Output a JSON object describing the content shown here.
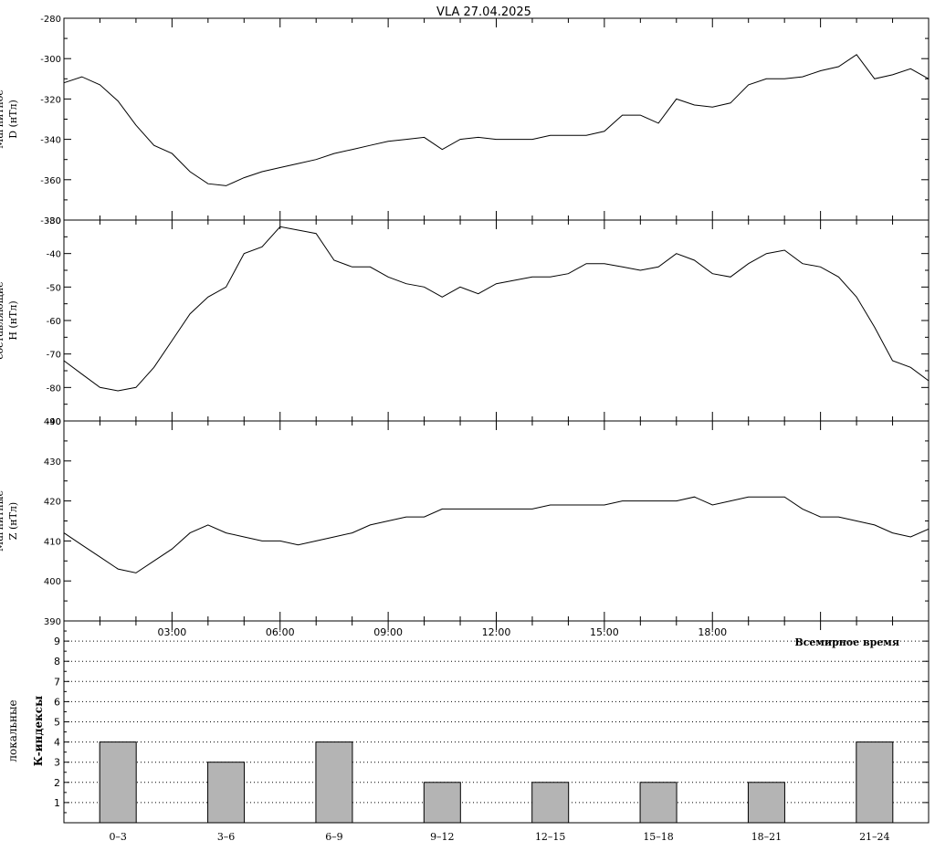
{
  "title": "VLA   27.04.2025",
  "chart_data": [
    {
      "type": "line",
      "ylabel": "D (нТл)",
      "ylabel_cut": "Магнитное",
      "ylim": [
        -380,
        -280
      ],
      "yticks": [
        -380,
        -360,
        -340,
        -320,
        -300,
        -280
      ],
      "xlim": [
        0,
        24
      ],
      "series": [
        {
          "x": [
            0,
            0.5,
            1.0,
            1.5,
            2.0,
            2.5,
            3.0,
            3.5,
            4.0,
            4.5,
            5.0,
            5.5,
            6.0,
            6.5,
            7.0,
            7.5,
            8.0,
            8.5,
            9.0,
            9.5,
            10.0,
            10.5,
            11.0,
            11.5,
            12.0,
            12.5,
            13.0,
            13.5,
            14.0,
            14.5,
            15.0,
            15.5,
            16.0,
            16.5,
            17.0,
            17.5,
            18.0,
            18.5,
            19.0,
            19.5,
            20.0,
            20.5,
            21.0,
            21.5,
            22.0,
            22.5,
            23.0,
            23.5,
            24.0
          ],
          "y": [
            -312,
            -309,
            -313,
            -321,
            -333,
            -343,
            -347,
            -356,
            -362,
            -363,
            -359,
            -356,
            -354,
            -352,
            -350,
            -347,
            -345,
            -343,
            -341,
            -340,
            -339,
            -345,
            -340,
            -339,
            -340,
            -340,
            -340,
            -338,
            -338,
            -338,
            -336,
            -328,
            -328,
            -332,
            -320,
            -323,
            -324,
            -322,
            -313,
            -310,
            -310,
            -309,
            -306,
            -304,
            -298,
            -310,
            -308,
            -305,
            -310
          ]
        }
      ]
    },
    {
      "type": "line",
      "ylabel": "H (нТл)",
      "ylabel_cut": "составляющие",
      "ylim": [
        -90,
        -30
      ],
      "yticks": [
        -90,
        -80,
        -70,
        -60,
        -50,
        -40,
        -30
      ],
      "xlim": [
        0,
        24
      ],
      "series": [
        {
          "x": [
            0,
            0.5,
            1.0,
            1.5,
            2.0,
            2.5,
            3.0,
            3.5,
            4.0,
            4.5,
            5.0,
            5.5,
            6.0,
            6.5,
            7.0,
            7.5,
            8.0,
            8.5,
            9.0,
            9.5,
            10.0,
            10.5,
            11.0,
            11.5,
            12.0,
            12.5,
            13.0,
            13.5,
            14.0,
            14.5,
            15.0,
            15.5,
            16.0,
            16.5,
            17.0,
            17.5,
            18.0,
            18.5,
            19.0,
            19.5,
            20.0,
            20.5,
            21.0,
            21.5,
            22.0,
            22.5,
            23.0,
            23.5,
            24.0
          ],
          "y": [
            -72,
            -76,
            -80,
            -81,
            -80,
            -74,
            -66,
            -58,
            -53,
            -50,
            -40,
            -38,
            -32,
            -33,
            -34,
            -42,
            -44,
            -44,
            -47,
            -49,
            -50,
            -53,
            -50,
            -52,
            -49,
            -48,
            -47,
            -47,
            -46,
            -43,
            -43,
            -44,
            -45,
            -44,
            -40,
            -42,
            -46,
            -47,
            -43,
            -40,
            -39,
            -43,
            -44,
            -47,
            -53,
            -62,
            -72,
            -74,
            -78
          ]
        }
      ]
    },
    {
      "type": "line",
      "ylabel": "Z (нТл)",
      "ylabel_cut": "Магнитные",
      "ylim": [
        390,
        440
      ],
      "yticks": [
        390,
        400,
        410,
        420,
        430,
        440
      ],
      "xlim": [
        0,
        24
      ],
      "series": [
        {
          "x": [
            0,
            0.5,
            1.0,
            1.5,
            2.0,
            2.5,
            3.0,
            3.5,
            4.0,
            4.5,
            5.0,
            5.5,
            6.0,
            6.5,
            7.0,
            7.5,
            8.0,
            8.5,
            9.0,
            9.5,
            10.0,
            10.5,
            11.0,
            11.5,
            12.0,
            12.5,
            13.0,
            13.5,
            14.0,
            14.5,
            15.0,
            15.5,
            16.0,
            16.5,
            17.0,
            17.5,
            18.0,
            18.5,
            19.0,
            19.5,
            20.0,
            20.5,
            21.0,
            21.5,
            22.0,
            22.5,
            23.0,
            23.5,
            24.0
          ],
          "y": [
            412,
            409,
            406,
            403,
            402,
            405,
            408,
            412,
            414,
            412,
            411,
            410,
            410,
            409,
            410,
            411,
            412,
            414,
            415,
            416,
            416,
            418,
            418,
            418,
            418,
            418,
            418,
            419,
            419,
            419,
            419,
            420,
            420,
            420,
            420,
            421,
            419,
            420,
            421,
            421,
            421,
            418,
            416,
            416,
            415,
            414,
            412,
            411,
            413
          ]
        }
      ]
    },
    {
      "type": "bar",
      "ylabel": "локальные",
      "ylabel2": "К-индексы",
      "xlabel": "Всемирное время",
      "ylim": [
        0,
        10
      ],
      "yticks": [
        1,
        2,
        3,
        4,
        5,
        6,
        7,
        8,
        9
      ],
      "time_ticks": [
        "03:00",
        "06:00",
        "09:00",
        "12:00",
        "15:00",
        "18:00"
      ],
      "categories": [
        "0–3",
        "3–6",
        "6–9",
        "9–12",
        "12–15",
        "15–18",
        "18–21",
        "21–24"
      ],
      "values": [
        4,
        3,
        4,
        2,
        2,
        2,
        2,
        4
      ],
      "bar_color": "#b4b4b4"
    }
  ]
}
